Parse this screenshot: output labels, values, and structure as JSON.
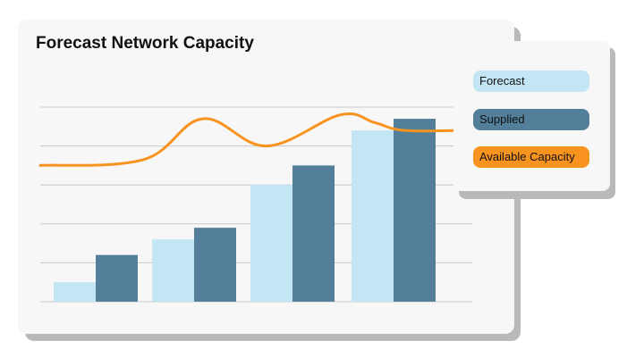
{
  "chart_data": {
    "type": "bar",
    "title": "Forecast Network Capacity",
    "xlabel": "",
    "ylabel": "",
    "ylim": [
      0,
      5
    ],
    "grid": true,
    "legend_position": "right",
    "categories": [
      "",
      "",
      "",
      ""
    ],
    "series": [
      {
        "name": "Forecast",
        "kind": "bar",
        "color": "#c3e6f5",
        "values": [
          0.5,
          1.6,
          3.0,
          4.4
        ]
      },
      {
        "name": "Supplied",
        "kind": "bar",
        "color": "#537f9a",
        "values": [
          1.2,
          1.9,
          3.5,
          4.7
        ]
      },
      {
        "name": "Available Capacity",
        "kind": "line",
        "color": "#f7931e",
        "x": [
          0,
          1.05,
          1.65,
          2.3,
          3.05,
          3.4,
          3.7,
          4.3
        ],
        "y": [
          3.5,
          3.65,
          4.7,
          4.0,
          4.8,
          4.6,
          4.4,
          4.4
        ]
      }
    ]
  },
  "legend": {
    "items": [
      {
        "label": "Forecast",
        "bg": "#c3e6f5",
        "fg": "#111111"
      },
      {
        "label": "Supplied",
        "bg": "#537f9a",
        "fg": "#111111"
      },
      {
        "label": "Available Capacity",
        "bg": "#f7931e",
        "fg": "#111111"
      }
    ]
  }
}
